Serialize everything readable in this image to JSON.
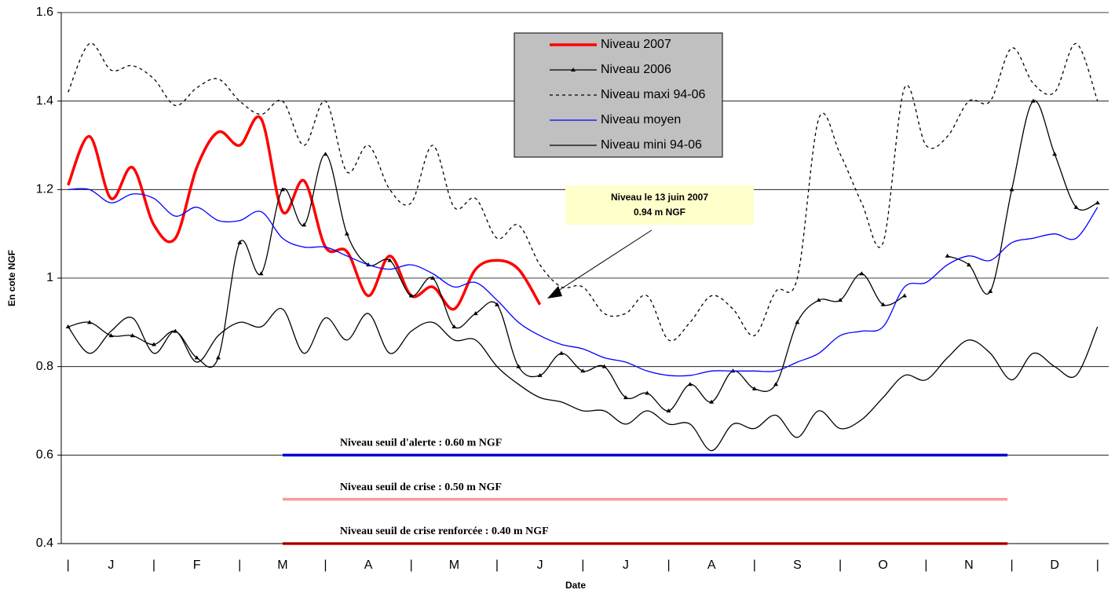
{
  "chart_data": {
    "type": "line",
    "ylabel": "En cote NGF",
    "xlabel": "Date",
    "xlim": [
      -0.08,
      12.13
    ],
    "ylim": [
      0.4,
      1.6
    ],
    "yticks": [
      0.4,
      0.6,
      0.8,
      1,
      1.2,
      1.4,
      1.6
    ],
    "grid": true,
    "xticks": [
      {
        "value": 0,
        "label": "|"
      },
      {
        "value": 0.5,
        "label": "J"
      },
      {
        "value": 1,
        "label": "|"
      },
      {
        "value": 1.5,
        "label": "F"
      },
      {
        "value": 2,
        "label": "|"
      },
      {
        "value": 2.5,
        "label": "M"
      },
      {
        "value": 3,
        "label": "|"
      },
      {
        "value": 3.5,
        "label": "A"
      },
      {
        "value": 4,
        "label": "|"
      },
      {
        "value": 4.5,
        "label": "M"
      },
      {
        "value": 5,
        "label": "|"
      },
      {
        "value": 5.5,
        "label": "J"
      },
      {
        "value": 6,
        "label": "|"
      },
      {
        "value": 6.5,
        "label": "J"
      },
      {
        "value": 7,
        "label": "|"
      },
      {
        "value": 7.5,
        "label": "A"
      },
      {
        "value": 8,
        "label": "|"
      },
      {
        "value": 8.5,
        "label": "S"
      },
      {
        "value": 9,
        "label": "|"
      },
      {
        "value": 9.5,
        "label": "O"
      },
      {
        "value": 10,
        "label": "|"
      },
      {
        "value": 10.5,
        "label": "N"
      },
      {
        "value": 11,
        "label": "|"
      },
      {
        "value": 11.5,
        "label": "D"
      },
      {
        "value": 12,
        "label": "|"
      }
    ],
    "x": [
      0,
      0.25,
      0.5,
      0.75,
      1,
      1.25,
      1.5,
      1.75,
      2,
      2.25,
      2.5,
      2.75,
      3,
      3.25,
      3.5,
      3.75,
      4,
      4.25,
      4.5,
      4.75,
      5,
      5.25,
      5.5,
      5.75,
      6,
      6.25,
      6.5,
      6.75,
      7,
      7.25,
      7.5,
      7.75,
      8,
      8.25,
      8.5,
      8.75,
      9,
      9.25,
      9.5,
      9.75,
      10,
      10.25,
      10.5,
      10.75,
      11,
      11.25,
      11.5,
      11.75,
      12
    ],
    "series": [
      {
        "name": "Niveau 2007",
        "color": "#ff0000",
        "width": 3.5,
        "dash": "solid",
        "values": [
          1.21,
          1.32,
          1.18,
          1.25,
          1.12,
          1.09,
          1.25,
          1.33,
          1.3,
          1.36,
          1.15,
          1.22,
          1.07,
          1.06,
          0.96,
          1.05,
          0.96,
          0.98,
          0.93,
          1.02,
          1.04,
          1.02,
          0.94,
          null,
          null,
          null,
          null,
          null,
          null,
          null,
          null,
          null,
          null,
          null,
          null,
          null,
          null,
          null,
          null,
          null,
          null,
          null,
          null,
          null,
          null,
          null,
          null,
          null,
          null
        ]
      },
      {
        "name": "Niveau 2006",
        "color": "#000000",
        "width": 1.3,
        "dash": "solid",
        "marker": "triangle",
        "values": [
          0.89,
          0.9,
          0.87,
          0.87,
          0.85,
          0.88,
          0.82,
          0.82,
          1.08,
          1.01,
          1.2,
          1.12,
          1.28,
          1.1,
          1.03,
          1.04,
          0.96,
          1.0,
          0.89,
          0.92,
          0.94,
          0.8,
          0.78,
          0.83,
          0.79,
          0.8,
          0.73,
          0.74,
          0.7,
          0.76,
          0.72,
          0.79,
          0.75,
          0.76,
          0.9,
          0.95,
          0.95,
          1.01,
          0.94,
          0.96,
          null,
          1.05,
          1.03,
          0.97,
          1.2,
          1.4,
          1.28,
          1.16,
          1.17
        ]
      },
      {
        "name": "Niveau maxi 94-06",
        "color": "#000000",
        "width": 1.3,
        "dash": "dotted",
        "values": [
          1.42,
          1.53,
          1.47,
          1.48,
          1.45,
          1.39,
          1.43,
          1.45,
          1.4,
          1.37,
          1.4,
          1.3,
          1.4,
          1.24,
          1.3,
          1.2,
          1.17,
          1.3,
          1.16,
          1.18,
          1.09,
          1.12,
          1.03,
          0.98,
          0.98,
          0.92,
          0.92,
          0.96,
          0.86,
          0.9,
          0.96,
          0.93,
          0.87,
          0.97,
          1.0,
          1.36,
          1.28,
          1.17,
          1.08,
          1.43,
          1.3,
          1.32,
          1.4,
          1.4,
          1.52,
          1.44,
          1.42,
          1.53,
          1.4
        ]
      },
      {
        "name": "Niveau moyen",
        "color": "#0000ff",
        "width": 1.3,
        "dash": "solid",
        "values": [
          1.2,
          1.2,
          1.17,
          1.19,
          1.18,
          1.14,
          1.16,
          1.13,
          1.13,
          1.15,
          1.09,
          1.07,
          1.07,
          1.05,
          1.03,
          1.02,
          1.03,
          1.01,
          0.98,
          0.99,
          0.95,
          0.9,
          0.87,
          0.85,
          0.84,
          0.82,
          0.81,
          0.79,
          0.78,
          0.78,
          0.79,
          0.79,
          0.79,
          0.79,
          0.81,
          0.83,
          0.87,
          0.88,
          0.89,
          0.98,
          0.99,
          1.03,
          1.05,
          1.04,
          1.08,
          1.09,
          1.1,
          1.09,
          1.16
        ]
      },
      {
        "name": "Niveau mini 94-06",
        "color": "#000000",
        "width": 1.3,
        "dash": "solid",
        "values": [
          0.89,
          0.83,
          0.88,
          0.91,
          0.83,
          0.88,
          0.81,
          0.87,
          0.9,
          0.89,
          0.93,
          0.83,
          0.91,
          0.86,
          0.92,
          0.83,
          0.88,
          0.9,
          0.86,
          0.86,
          0.8,
          0.76,
          0.73,
          0.72,
          0.7,
          0.7,
          0.67,
          0.7,
          0.67,
          0.67,
          0.61,
          0.67,
          0.66,
          0.69,
          0.64,
          0.7,
          0.66,
          0.68,
          0.73,
          0.78,
          0.77,
          0.82,
          0.86,
          0.83,
          0.77,
          0.83,
          0.8,
          0.78,
          0.89
        ]
      }
    ],
    "thresholds": [
      {
        "label": "Niveau seuil d'alerte : 0.60 m NGF",
        "value": 0.6,
        "color": "#0000cc",
        "xrange": [
          2.5,
          10.95
        ]
      },
      {
        "label": "Niveau seuil de crise : 0.50 m NGF",
        "value": 0.5,
        "color": "#ff9999",
        "xrange": [
          2.5,
          10.95
        ]
      },
      {
        "label": "Niveau seuil de crise renforcée : 0.40  m NGF",
        "value": 0.4,
        "color": "#ff0000",
        "xrange": [
          2.5,
          10.95
        ]
      }
    ],
    "annotation": [
      "Niveau le 13 juin 2007",
      "0.94 m NGF"
    ]
  }
}
